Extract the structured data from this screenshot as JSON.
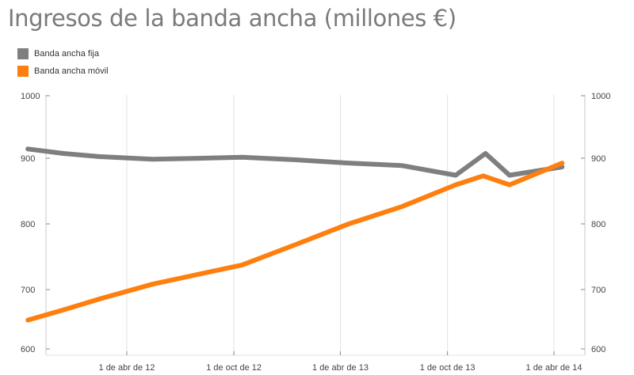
{
  "chart_data": {
    "type": "line",
    "title": "Ingresos de la banda ancha (millones €)",
    "xlabel": "",
    "ylabel": "",
    "x": [
      "2011-10-15",
      "2011-12-15",
      "2012-02-15",
      "2012-05-15",
      "2012-07-15",
      "2012-10-15",
      "2013-01-15",
      "2013-04-15",
      "2013-07-15",
      "2013-10-15",
      "2014-01-15",
      "2014-04-15"
    ],
    "series": [
      {
        "name": "Banda ancha fija",
        "color": "#7f7f7f",
        "values": [
          912,
          905,
          900,
          896,
          897,
          899,
          895,
          890,
          886,
          871,
          871,
          884
        ]
      },
      {
        "name": "Banda ancha móvil",
        "color": "#ff7f0e",
        "values": [
          645,
          661,
          678,
          701,
          713,
          731,
          763,
          795,
          822,
          856,
          856,
          890
        ]
      }
    ],
    "extra_points": [
      {
        "series": "Banda ancha fija",
        "x": "2013-12-05",
        "y": 905
      },
      {
        "series": "Banda ancha móvil",
        "x": "2013-12-01",
        "y": 870
      }
    ],
    "ylim": [
      600,
      1000
    ],
    "yticks_left": [
      "600",
      "700",
      "800",
      "900",
      "1000"
    ],
    "yticks_right": [
      "600",
      "700",
      "800",
      "900",
      "1000"
    ],
    "xticks": [
      {
        "date": "2012-04-01",
        "label": "1 de abr de 12"
      },
      {
        "date": "2012-10-01",
        "label": "1 de oct de 12"
      },
      {
        "date": "2013-04-01",
        "label": "1 de abr de 13"
      },
      {
        "date": "2013-10-01",
        "label": "1 de oct de 13"
      },
      {
        "date": "2014-04-01",
        "label": "1 de abr de 14"
      }
    ],
    "grid": "vertical",
    "legend_position": "top-left"
  }
}
